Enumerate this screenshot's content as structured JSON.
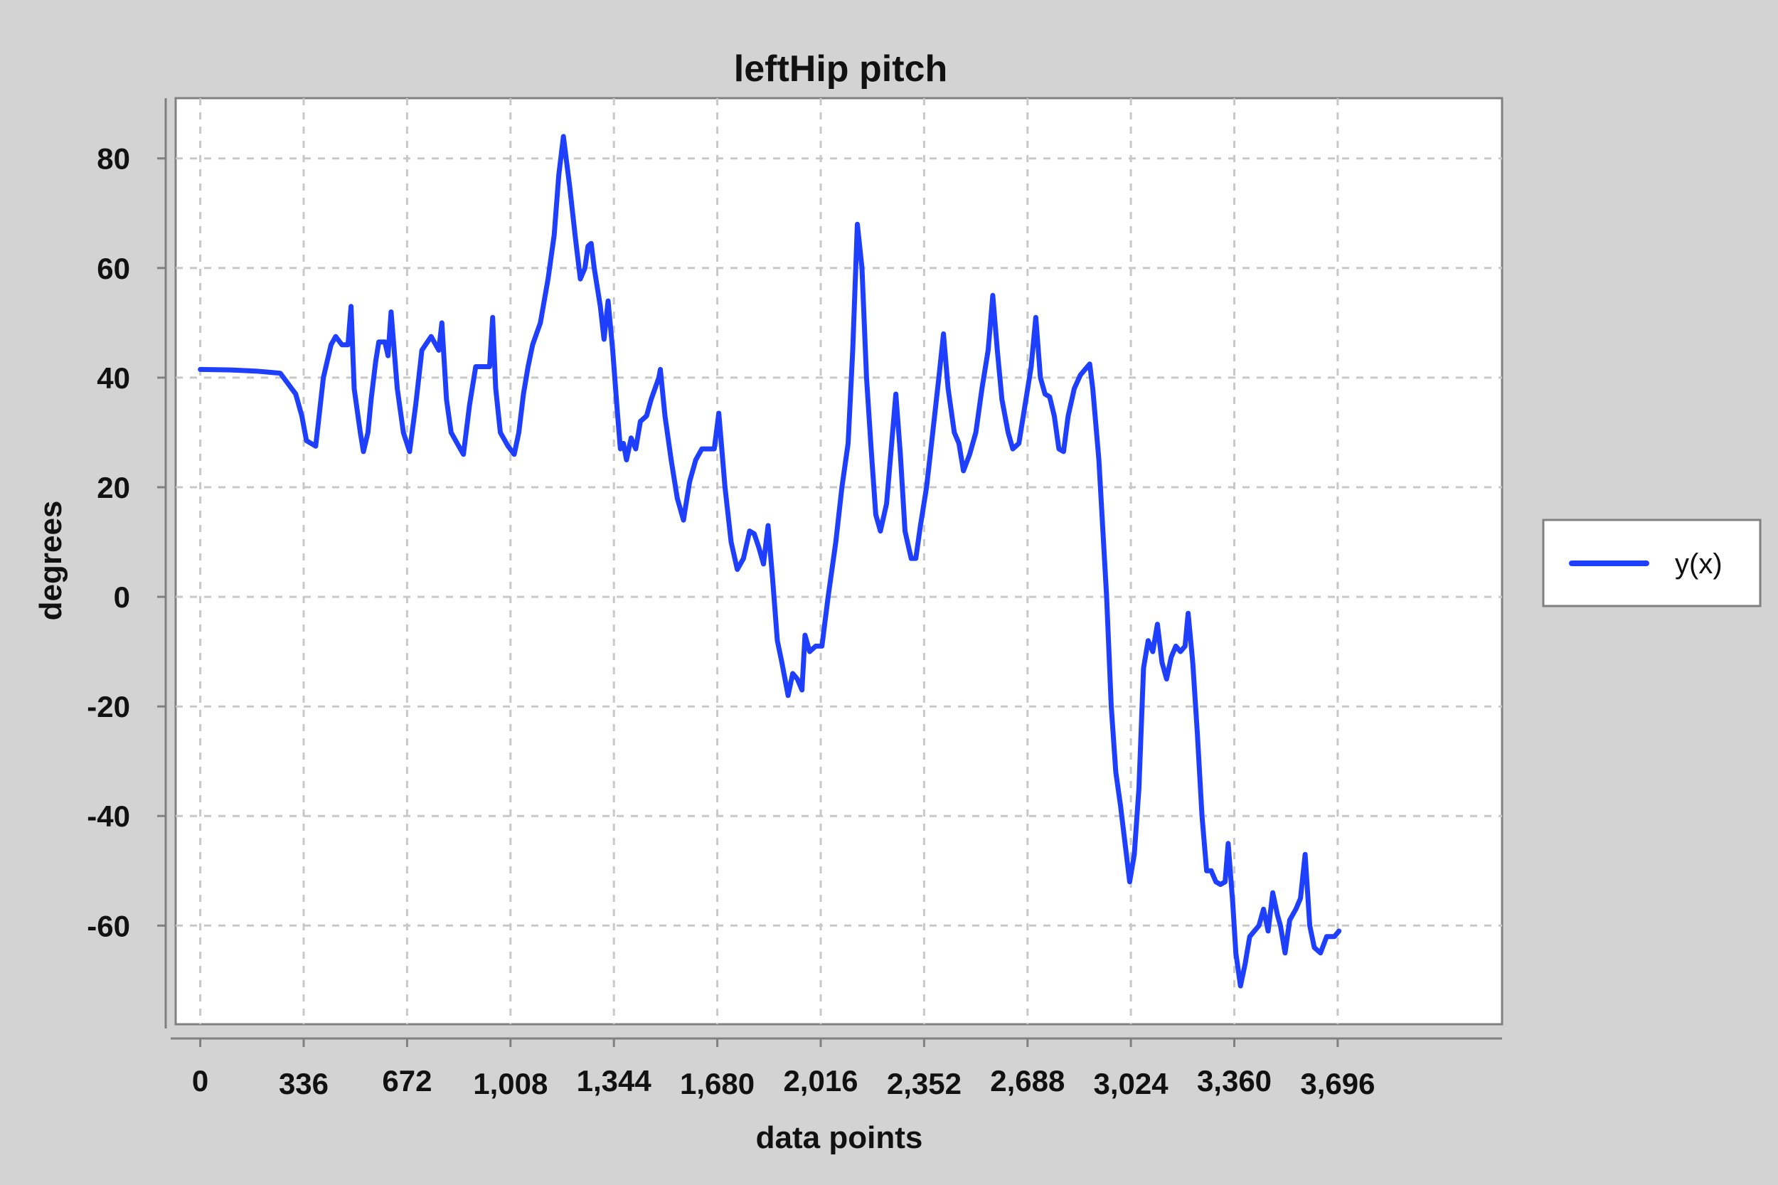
{
  "chart_data": {
    "type": "line",
    "title": "leftHip pitch",
    "xlabel": "data points",
    "ylabel": "degrees",
    "xlim": [
      -80,
      4230
    ],
    "ylim": [
      -78,
      91
    ],
    "x_ticks": [
      0,
      336,
      672,
      1008,
      1344,
      1680,
      2016,
      2352,
      2688,
      3024,
      3360,
      3696
    ],
    "x_tick_labels": [
      "0",
      "336",
      "672",
      "1,008",
      "1,344",
      "1,680",
      "2,016",
      "2,352",
      "2,688",
      "3,024",
      "3,360",
      "3,696"
    ],
    "y_ticks": [
      80,
      60,
      40,
      20,
      0,
      -20,
      -40,
      -60
    ],
    "y_tick_labels": [
      "80",
      "60",
      "40",
      "20",
      "0",
      "-20",
      "-40",
      "-60"
    ],
    "grid": true,
    "legend_position": "right",
    "series": [
      {
        "name": "y(x)",
        "color": "#1f3fff",
        "points": [
          [
            0,
            41.5
          ],
          [
            100,
            41.4
          ],
          [
            180,
            41.2
          ],
          [
            260,
            40.8
          ],
          [
            310,
            37
          ],
          [
            330,
            33
          ],
          [
            345,
            28.5
          ],
          [
            375,
            27.5
          ],
          [
            400,
            40
          ],
          [
            425,
            46
          ],
          [
            440,
            47.5
          ],
          [
            460,
            46
          ],
          [
            480,
            46
          ],
          [
            490,
            53
          ],
          [
            500,
            38
          ],
          [
            520,
            30
          ],
          [
            530,
            26.5
          ],
          [
            545,
            30
          ],
          [
            555,
            36
          ],
          [
            570,
            43
          ],
          [
            580,
            46.5
          ],
          [
            600,
            46.5
          ],
          [
            610,
            44
          ],
          [
            620,
            52
          ],
          [
            640,
            38
          ],
          [
            660,
            30
          ],
          [
            680,
            26.5
          ],
          [
            700,
            35
          ],
          [
            720,
            45
          ],
          [
            750,
            47.5
          ],
          [
            775,
            45
          ],
          [
            785,
            50
          ],
          [
            800,
            36
          ],
          [
            815,
            30
          ],
          [
            835,
            28
          ],
          [
            855,
            26
          ],
          [
            875,
            35
          ],
          [
            895,
            42
          ],
          [
            920,
            42
          ],
          [
            940,
            42
          ],
          [
            950,
            51
          ],
          [
            960,
            38
          ],
          [
            975,
            30
          ],
          [
            1000,
            27.5
          ],
          [
            1020,
            26
          ],
          [
            1035,
            30
          ],
          [
            1050,
            37
          ],
          [
            1065,
            42
          ],
          [
            1080,
            46
          ],
          [
            1105,
            50
          ],
          [
            1130,
            58
          ],
          [
            1150,
            66
          ],
          [
            1165,
            77
          ],
          [
            1180,
            84
          ],
          [
            1200,
            75
          ],
          [
            1220,
            65
          ],
          [
            1235,
            58
          ],
          [
            1250,
            60
          ],
          [
            1260,
            64
          ],
          [
            1270,
            64.5
          ],
          [
            1280,
            60
          ],
          [
            1300,
            53
          ],
          [
            1312,
            47
          ],
          [
            1325,
            54
          ],
          [
            1340,
            45
          ],
          [
            1355,
            34
          ],
          [
            1365,
            27
          ],
          [
            1375,
            28
          ],
          [
            1385,
            25
          ],
          [
            1400,
            29
          ],
          [
            1415,
            27
          ],
          [
            1430,
            32
          ],
          [
            1450,
            33
          ],
          [
            1465,
            36
          ],
          [
            1490,
            40
          ],
          [
            1495,
            41.5
          ],
          [
            1510,
            33
          ],
          [
            1530,
            25
          ],
          [
            1550,
            18
          ],
          [
            1570,
            14
          ],
          [
            1590,
            21
          ],
          [
            1610,
            25
          ],
          [
            1630,
            27
          ],
          [
            1650,
            27
          ],
          [
            1670,
            27
          ],
          [
            1685,
            33.5
          ],
          [
            1705,
            20
          ],
          [
            1725,
            10
          ],
          [
            1745,
            5
          ],
          [
            1765,
            7
          ],
          [
            1785,
            12
          ],
          [
            1800,
            11.5
          ],
          [
            1815,
            9
          ],
          [
            1830,
            6
          ],
          [
            1845,
            13
          ],
          [
            1860,
            3
          ],
          [
            1875,
            -8
          ],
          [
            1890,
            -12
          ],
          [
            1910,
            -18
          ],
          [
            1925,
            -14
          ],
          [
            1940,
            -15
          ],
          [
            1955,
            -17
          ],
          [
            1965,
            -7
          ],
          [
            1980,
            -10
          ],
          [
            2000,
            -9
          ],
          [
            2020,
            -9
          ],
          [
            2040,
            0
          ],
          [
            2065,
            10
          ],
          [
            2085,
            20
          ],
          [
            2105,
            28
          ],
          [
            2120,
            45
          ],
          [
            2135,
            68
          ],
          [
            2150,
            60
          ],
          [
            2165,
            40
          ],
          [
            2180,
            27
          ],
          [
            2195,
            15
          ],
          [
            2210,
            12
          ],
          [
            2230,
            17
          ],
          [
            2245,
            27
          ],
          [
            2260,
            37
          ],
          [
            2275,
            26
          ],
          [
            2290,
            12
          ],
          [
            2310,
            7
          ],
          [
            2325,
            7
          ],
          [
            2340,
            13
          ],
          [
            2360,
            20
          ],
          [
            2380,
            30
          ],
          [
            2400,
            40
          ],
          [
            2415,
            48
          ],
          [
            2430,
            38
          ],
          [
            2450,
            30
          ],
          [
            2465,
            28
          ],
          [
            2480,
            23
          ],
          [
            2500,
            26
          ],
          [
            2520,
            30
          ],
          [
            2540,
            38
          ],
          [
            2560,
            45
          ],
          [
            2575,
            55
          ],
          [
            2590,
            45
          ],
          [
            2605,
            36
          ],
          [
            2625,
            30
          ],
          [
            2640,
            27
          ],
          [
            2660,
            28
          ],
          [
            2680,
            35
          ],
          [
            2700,
            42
          ],
          [
            2715,
            51
          ],
          [
            2730,
            40
          ],
          [
            2745,
            37
          ],
          [
            2760,
            36.5
          ],
          [
            2775,
            33
          ],
          [
            2790,
            27
          ],
          [
            2805,
            26.5
          ],
          [
            2820,
            33
          ],
          [
            2840,
            38
          ],
          [
            2860,
            40.5
          ],
          [
            2875,
            41.5
          ],
          [
            2890,
            42.5
          ],
          [
            2900,
            38
          ],
          [
            2920,
            25
          ],
          [
            2945,
            0
          ],
          [
            2960,
            -20
          ],
          [
            2975,
            -32
          ],
          [
            2990,
            -38
          ],
          [
            3005,
            -45
          ],
          [
            3020,
            -52
          ],
          [
            3035,
            -47
          ],
          [
            3050,
            -35
          ],
          [
            3065,
            -13
          ],
          [
            3080,
            -8
          ],
          [
            3095,
            -10
          ],
          [
            3110,
            -5
          ],
          [
            3125,
            -12
          ],
          [
            3140,
            -15
          ],
          [
            3155,
            -11
          ],
          [
            3170,
            -9
          ],
          [
            3185,
            -10
          ],
          [
            3200,
            -9
          ],
          [
            3210,
            -3
          ],
          [
            3225,
            -12
          ],
          [
            3240,
            -25
          ],
          [
            3255,
            -40
          ],
          [
            3270,
            -50
          ],
          [
            3285,
            -50
          ],
          [
            3300,
            -52
          ],
          [
            3315,
            -52.5
          ],
          [
            3330,
            -52
          ],
          [
            3340,
            -45
          ],
          [
            3355,
            -56
          ],
          [
            3365,
            -65
          ],
          [
            3380,
            -71
          ],
          [
            3395,
            -67
          ],
          [
            3410,
            -62
          ],
          [
            3425,
            -61
          ],
          [
            3440,
            -60
          ],
          [
            3455,
            -57
          ],
          [
            3470,
            -61
          ],
          [
            3485,
            -54
          ],
          [
            3500,
            -58
          ],
          [
            3510,
            -60
          ],
          [
            3525,
            -65
          ],
          [
            3540,
            -59
          ],
          [
            3560,
            -57
          ],
          [
            3575,
            -55
          ],
          [
            3590,
            -47
          ],
          [
            3605,
            -60
          ],
          [
            3620,
            -64
          ],
          [
            3640,
            -65
          ],
          [
            3660,
            -62
          ],
          [
            3685,
            -62
          ],
          [
            3700,
            -61
          ]
        ]
      }
    ]
  }
}
